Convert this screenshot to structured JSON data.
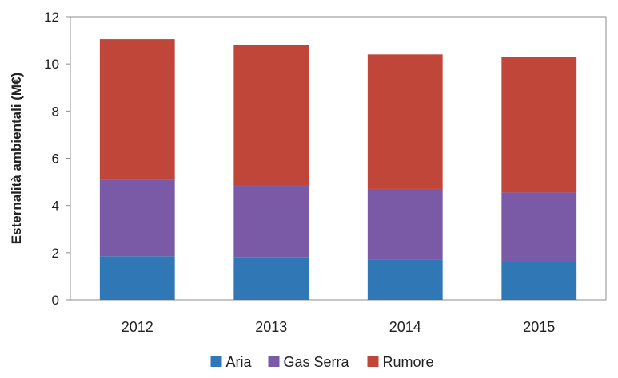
{
  "chart_data": {
    "type": "bar",
    "stacked": true,
    "categories": [
      "2012",
      "2013",
      "2014",
      "2015"
    ],
    "series": [
      {
        "name": "Aria",
        "values": [
          1.85,
          1.8,
          1.72,
          1.6
        ],
        "color": "#2f77b5"
      },
      {
        "name": "Gas Serra",
        "values": [
          3.25,
          3.05,
          2.98,
          2.95
        ],
        "color": "#7a5aa6"
      },
      {
        "name": "Rumore",
        "values": [
          5.95,
          5.95,
          5.7,
          5.75
        ],
        "color": "#c0463a"
      }
    ],
    "title": "",
    "xlabel": "",
    "ylabel": "Esternalità ambientali (M€)",
    "ylim": [
      0,
      12
    ],
    "yticks": [
      "0",
      "2",
      "4",
      "6",
      "8",
      "10",
      "12"
    ],
    "grid": false,
    "legend_position": "bottom"
  }
}
